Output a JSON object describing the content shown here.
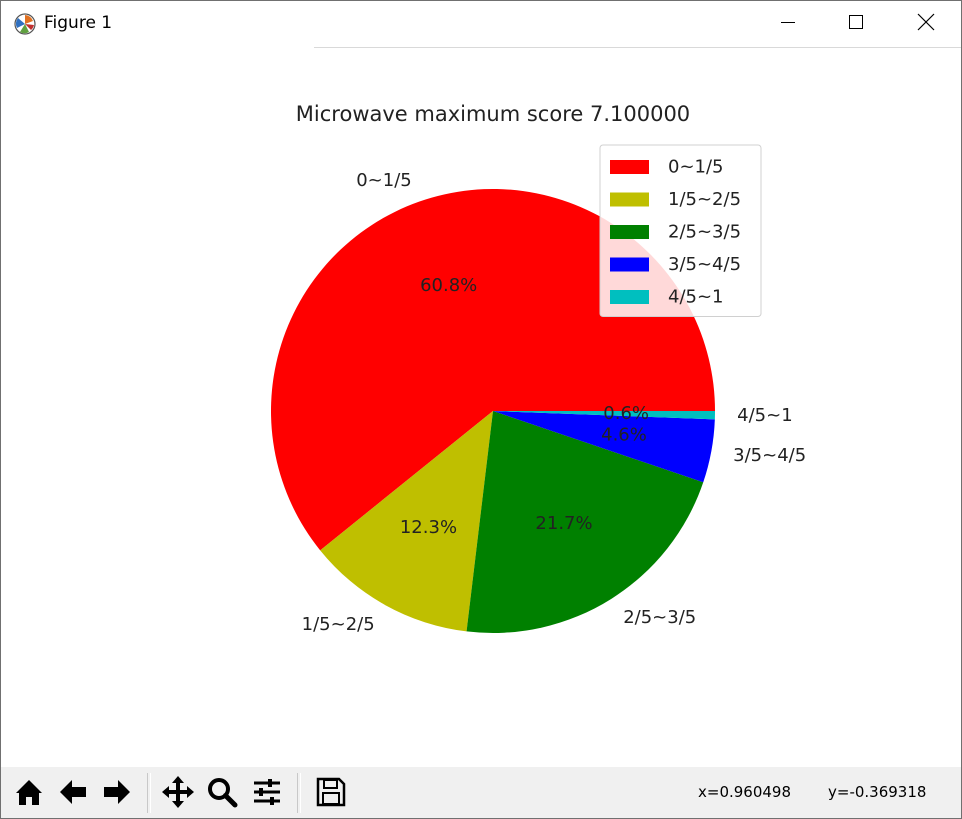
{
  "window": {
    "title": "Figure 1",
    "icon": "matplotlib-icon",
    "controls": [
      "minimize-icon",
      "maximize-icon",
      "close-icon"
    ]
  },
  "chart_data": {
    "type": "pie",
    "title": "Microwave maximum score 7.100000",
    "categories": [
      "0~1/5",
      "1/5~2/5",
      "2/5~3/5",
      "3/5~4/5",
      "4/5~1"
    ],
    "values": [
      60.8,
      12.3,
      21.7,
      4.6,
      0.6
    ],
    "pct_labels": [
      "60.8%",
      "12.3%",
      "21.7%",
      "4.6%",
      "0.6%"
    ],
    "colors": [
      "#ff0000",
      "#bfbf00",
      "#008000",
      "#0000ff",
      "#00bfbf"
    ],
    "start_angle_deg": 0,
    "direction": "counterclockwise",
    "legend": {
      "placement": "top-right",
      "entries": [
        "0~1/5",
        "1/5~2/5",
        "2/5~3/5",
        "3/5~4/5",
        "4/5~1"
      ]
    }
  },
  "toolbar": {
    "buttons": [
      "home-icon",
      "back-arrow-icon",
      "forward-arrow-icon",
      "pan-icon",
      "zoom-icon",
      "configure-subplots-icon",
      "save-icon"
    ],
    "x_readout": "x=0.960498",
    "y_readout": "y=-0.369318"
  }
}
